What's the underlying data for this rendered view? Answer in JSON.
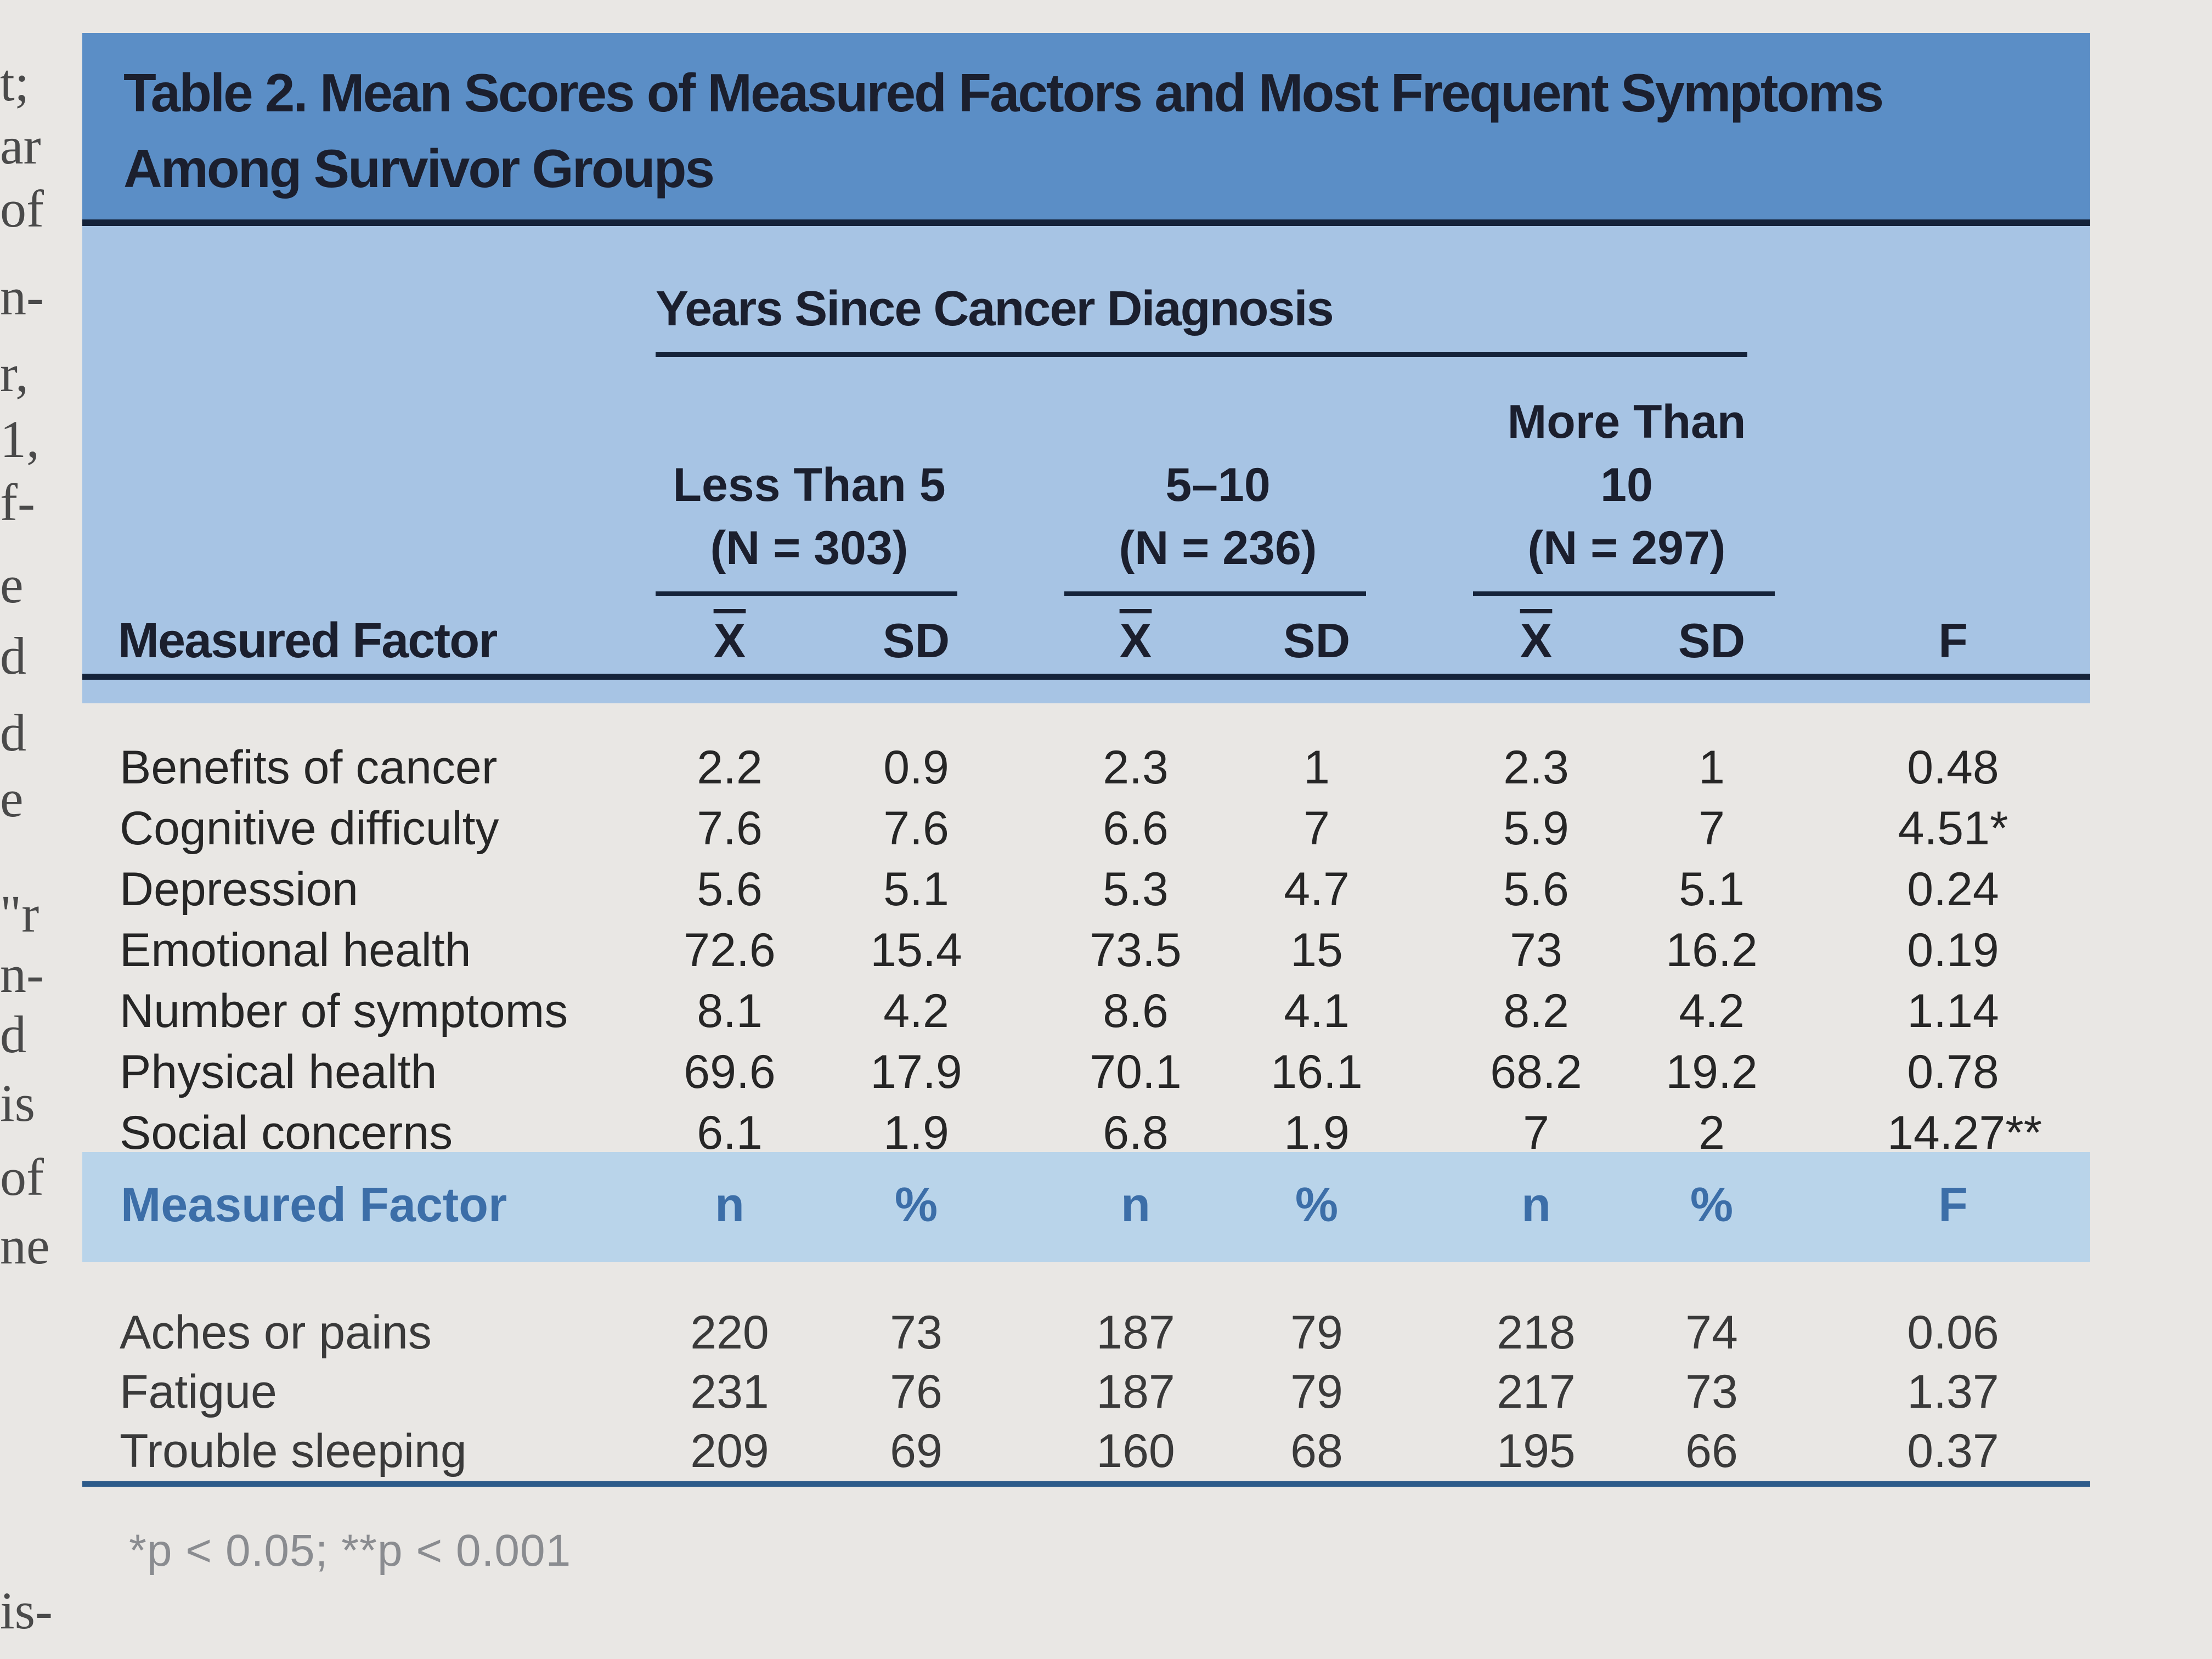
{
  "margin_fragments": [
    "t;",
    "ar",
    "of",
    "n-",
    "r,",
    "1,",
    "f-",
    "e",
    "d",
    "d",
    "e",
    "\"r",
    "n-",
    "d",
    "is",
    "of",
    "ne",
    "is-"
  ],
  "table": {
    "title": "Table 2. Mean Scores of Measured Factors and Most Frequent Symptoms Among Survivor Groups",
    "group_header": "Years Since Cancer Diagnosis",
    "groups": [
      {
        "lines": [
          "Less Than 5",
          "(N = 303)"
        ]
      },
      {
        "lines": [
          "5–10",
          "(N = 236)"
        ]
      },
      {
        "lines": [
          "More Than",
          "10",
          "(N = 297)"
        ]
      }
    ],
    "section1_headers": {
      "factor": "Measured Factor",
      "mean": "X",
      "sd": "SD",
      "f": "F"
    },
    "section1_rows": [
      {
        "label": "Benefits of cancer",
        "values": [
          "2.2",
          "0.9",
          "2.3",
          "1",
          "2.3",
          "1",
          "0.48"
        ]
      },
      {
        "label": "Cognitive difficulty",
        "values": [
          "7.6",
          "7.6",
          "6.6",
          "7",
          "5.9",
          "7",
          "4.51*"
        ]
      },
      {
        "label": "Depression",
        "values": [
          "5.6",
          "5.1",
          "5.3",
          "4.7",
          "5.6",
          "5.1",
          "0.24"
        ]
      },
      {
        "label": "Emotional health",
        "values": [
          "72.6",
          "15.4",
          "73.5",
          "15",
          "73",
          "16.2",
          "0.19"
        ]
      },
      {
        "label": "Number of symptoms",
        "values": [
          "8.1",
          "4.2",
          "8.6",
          "4.1",
          "8.2",
          "4.2",
          "1.14"
        ]
      },
      {
        "label": "Physical health",
        "values": [
          "69.6",
          "17.9",
          "70.1",
          "16.1",
          "68.2",
          "19.2",
          "0.78"
        ]
      },
      {
        "label": "Social concerns",
        "values": [
          "6.1",
          "1.9",
          "6.8",
          "1.9",
          "7",
          "2",
          "14.27**"
        ]
      }
    ],
    "section2_headers": {
      "factor": "Measured Factor",
      "n": "n",
      "pct": "%",
      "f": "F"
    },
    "section2_rows": [
      {
        "label": "Aches or pains",
        "values": [
          "220",
          "73",
          "187",
          "79",
          "218",
          "74",
          "0.06"
        ]
      },
      {
        "label": "Fatigue",
        "values": [
          "231",
          "76",
          "187",
          "79",
          "217",
          "73",
          "1.37"
        ]
      },
      {
        "label": "Trouble sleeping",
        "values": [
          "209",
          "69",
          "160",
          "68",
          "195",
          "66",
          "0.37"
        ]
      }
    ],
    "footnote": "*p < 0.05; **p < 0.001"
  }
}
